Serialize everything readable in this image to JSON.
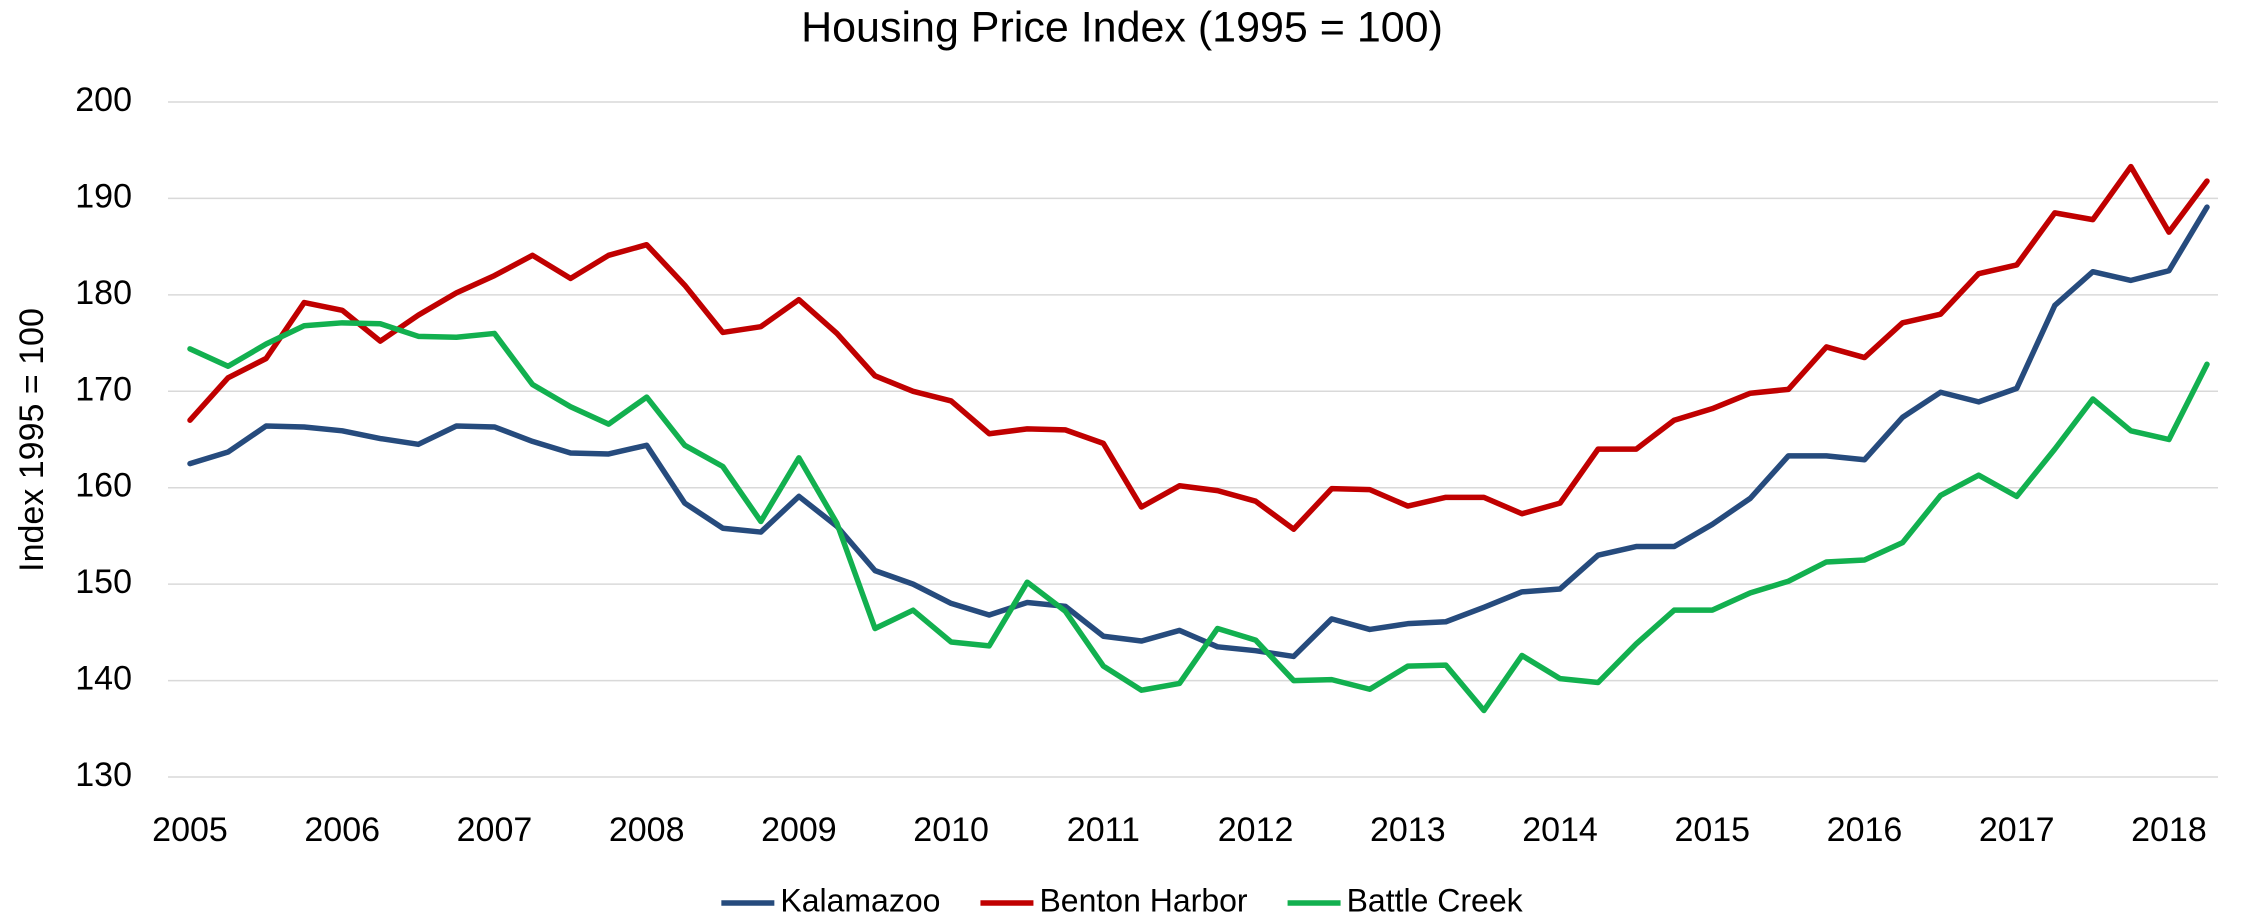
{
  "chart_data": {
    "type": "line",
    "title": "Housing Price Index (1995 = 100)",
    "y_label": "Index 1995 = 100",
    "categories": [
      "2005",
      null,
      null,
      null,
      "2006",
      null,
      null,
      null,
      "2007",
      null,
      null,
      null,
      "2008",
      null,
      null,
      null,
      "2009",
      null,
      null,
      null,
      "2010",
      null,
      null,
      null,
      "2011",
      null,
      null,
      null,
      "2012",
      null,
      null,
      null,
      "2013",
      null,
      null,
      null,
      "2014",
      null,
      null,
      null,
      "2015",
      null,
      null,
      null,
      "2016",
      null,
      null,
      null,
      "2017",
      null,
      null,
      null,
      "2018",
      null
    ],
    "series": [
      {
        "name": "Kalamazoo",
        "color": "#264b7d",
        "values": [
          162.5,
          163.7,
          166.4,
          166.3,
          165.9,
          165.1,
          164.5,
          166.4,
          166.3,
          164.8,
          163.6,
          163.5,
          164.4,
          158.4,
          155.8,
          155.4,
          159.1,
          156.0,
          151.4,
          150.0,
          148.0,
          146.8,
          148.1,
          147.7,
          144.6,
          144.1,
          145.2,
          143.5,
          143.1,
          142.5,
          146.4,
          145.3,
          145.9,
          146.1,
          147.6,
          149.2,
          149.5,
          153.0,
          153.9,
          153.9,
          156.2,
          158.9,
          163.3,
          163.3,
          162.9,
          167.3,
          169.9,
          168.9,
          170.3,
          178.9,
          182.4,
          181.5,
          182.5,
          189.1
        ]
      },
      {
        "name": "Benton Harbor",
        "color": "#c00000",
        "values": [
          167.0,
          171.4,
          173.4,
          179.2,
          178.4,
          175.2,
          177.9,
          180.2,
          182.0,
          184.1,
          181.7,
          184.1,
          185.2,
          181.0,
          176.1,
          176.7,
          179.5,
          176.0,
          171.6,
          170.0,
          169.0,
          165.6,
          166.1,
          166.0,
          164.6,
          158.0,
          160.2,
          159.7,
          158.6,
          155.7,
          159.9,
          159.8,
          158.1,
          159.0,
          159.0,
          157.3,
          158.4,
          164.0,
          164.0,
          167.0,
          168.2,
          169.8,
          170.2,
          174.6,
          173.5,
          177.1,
          178.0,
          182.2,
          183.1,
          188.5,
          187.8,
          193.3,
          186.5,
          191.8
        ]
      },
      {
        "name": "Battle Creek",
        "color": "#12b04f",
        "values": [
          174.4,
          172.6,
          174.9,
          176.8,
          177.1,
          177.0,
          175.7,
          175.6,
          176.0,
          170.7,
          168.4,
          166.6,
          169.4,
          164.4,
          162.2,
          156.5,
          163.1,
          156.3,
          145.4,
          147.3,
          144.0,
          143.6,
          150.2,
          147.2,
          141.5,
          139.0,
          139.7,
          145.4,
          144.2,
          140.0,
          140.1,
          139.1,
          141.5,
          141.6,
          136.9,
          142.6,
          140.2,
          139.8,
          143.8,
          147.3,
          147.3,
          149.1,
          150.3,
          152.3,
          152.5,
          154.3,
          159.2,
          161.3,
          159.1,
          164.0,
          169.2,
          165.9,
          165.0,
          172.8
        ]
      }
    ],
    "ylim": [
      130,
      200
    ],
    "yticks": [
      130,
      140,
      150,
      160,
      170,
      180,
      190,
      200
    ],
    "grid": true,
    "legend": "bottom"
  }
}
